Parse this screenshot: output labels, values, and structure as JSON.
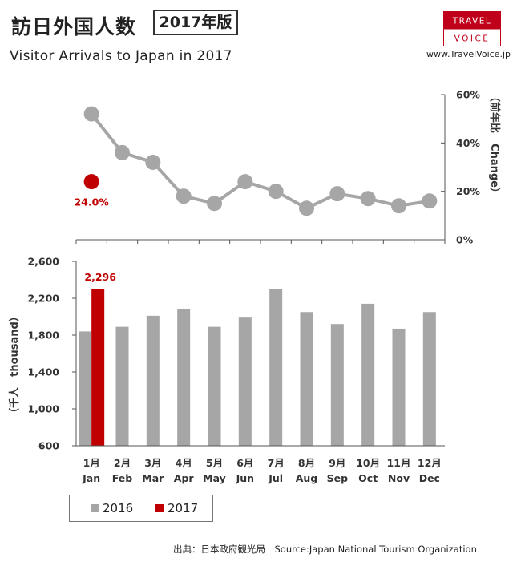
{
  "header": {
    "title_jp": "訪日外国人数",
    "badge": "2017年版",
    "title_en": "Visitor Arrivals to Japan in 2017"
  },
  "logo": {
    "line1": "TRAVEL",
    "line2": "VOICE",
    "color": "#c0001a"
  },
  "site_url": "www.TravelVoice.jp",
  "source": "出典：日本政府観光局　Source:Japan  National Tourism   Organization",
  "colors": {
    "s2016": "#a6a6a6",
    "s2017": "#c00000",
    "axis": "#555555"
  },
  "chart_data": [
    {
      "type": "line",
      "categories": [
        "1月",
        "2月",
        "3月",
        "4月",
        "5月",
        "6月",
        "7月",
        "8月",
        "9月",
        "10月",
        "11月",
        "12月"
      ],
      "series": [
        {
          "name": "2016",
          "values": [
            52,
            36,
            32,
            18,
            15,
            24,
            20,
            13,
            19,
            17,
            14,
            16
          ]
        },
        {
          "name": "2017",
          "values": [
            24.0,
            null,
            null,
            null,
            null,
            null,
            null,
            null,
            null,
            null,
            null,
            null
          ]
        }
      ],
      "annotations": [
        {
          "category": "1月",
          "label": "24.0%"
        }
      ],
      "ylabel": "（前年比　Change）",
      "ylim": [
        0,
        60
      ],
      "y_ticks": [
        "0%",
        "20%",
        "40%",
        "60%"
      ],
      "y_axis_side": "right",
      "grid": false
    },
    {
      "type": "bar",
      "categories": [
        "1月",
        "2月",
        "3月",
        "4月",
        "5月",
        "6月",
        "7月",
        "8月",
        "9月",
        "10月",
        "11月",
        "12月"
      ],
      "category_labels_en": [
        "Jan",
        "Feb",
        "Mar",
        "Apr",
        "May",
        "Jun",
        "Jul",
        "Aug",
        "Sep",
        "Oct",
        "Nov",
        "Dec"
      ],
      "series": [
        {
          "name": "2016",
          "values": [
            1840,
            1890,
            2010,
            2080,
            1890,
            1990,
            2300,
            2050,
            1920,
            2140,
            1870,
            2050
          ]
        },
        {
          "name": "2017",
          "values": [
            2296,
            null,
            null,
            null,
            null,
            null,
            null,
            null,
            null,
            null,
            null,
            null
          ]
        }
      ],
      "data_labels": [
        {
          "category": "1月",
          "series": "2017",
          "label": "2,296"
        }
      ],
      "ylabel": "（千人　thousand）",
      "ylim": [
        600,
        2600
      ],
      "y_ticks": [
        "600",
        "1,000",
        "1,400",
        "1,800",
        "2,200",
        "2,600"
      ],
      "legend": {
        "placement": "bottom-left",
        "entries": [
          "2016",
          "2017"
        ]
      },
      "grid": false
    }
  ]
}
